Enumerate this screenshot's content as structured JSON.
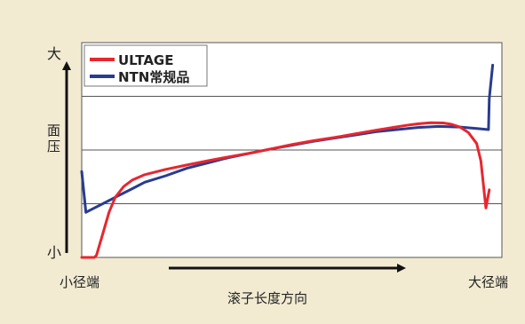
{
  "colors": {
    "background": "#f2ebd2",
    "plot_background": "#ffffff",
    "grid": "#555555",
    "axis": "#111111"
  },
  "chart_data": {
    "type": "line",
    "xlabel": "滚子长度方向",
    "x_start_label": "小径端",
    "x_end_label": "大径端",
    "ylabel": "面压",
    "y_top_label": "大",
    "y_bottom_label": "小",
    "xlim": [
      0,
      100
    ],
    "ylim": [
      0,
      100
    ],
    "grid": {
      "horizontal": true,
      "vertical": false,
      "lines_y": [
        25,
        50,
        75
      ]
    },
    "legend_position": "top-left",
    "series": [
      {
        "name": "ULTAGE",
        "color": "#e8262e",
        "x": [
          0,
          3,
          3.5,
          5,
          6.5,
          8,
          10,
          12,
          15,
          20,
          25,
          30,
          35,
          40,
          45,
          50,
          55,
          60,
          65,
          70,
          75,
          78,
          80,
          83,
          86,
          88,
          90,
          92,
          94,
          95,
          96.2,
          97
        ],
        "y": [
          0,
          0,
          1,
          11,
          21,
          28,
          33,
          36,
          38.5,
          41,
          43,
          45,
          46.8,
          48.5,
          50.5,
          52.5,
          54.3,
          55.8,
          57.5,
          59.2,
          60.8,
          61.7,
          62.2,
          62.7,
          62.6,
          62,
          60.7,
          58.2,
          53,
          45,
          23,
          31.5
        ]
      },
      {
        "name": "NTN常规品",
        "color": "#283c90",
        "x": [
          0,
          1,
          3,
          5,
          8,
          12,
          15,
          20,
          25,
          30,
          35,
          40,
          45,
          50,
          55,
          60,
          65,
          70,
          75,
          80,
          85,
          90,
          94,
          96.8,
          97,
          97.8
        ],
        "y": [
          40,
          21,
          23,
          25,
          28,
          32,
          35,
          38,
          41.5,
          44,
          46.5,
          48.5,
          50.5,
          52.2,
          54,
          55.5,
          57,
          58.5,
          59.5,
          60.5,
          61,
          60.7,
          60,
          59.5,
          74,
          89.5
        ]
      }
    ]
  }
}
